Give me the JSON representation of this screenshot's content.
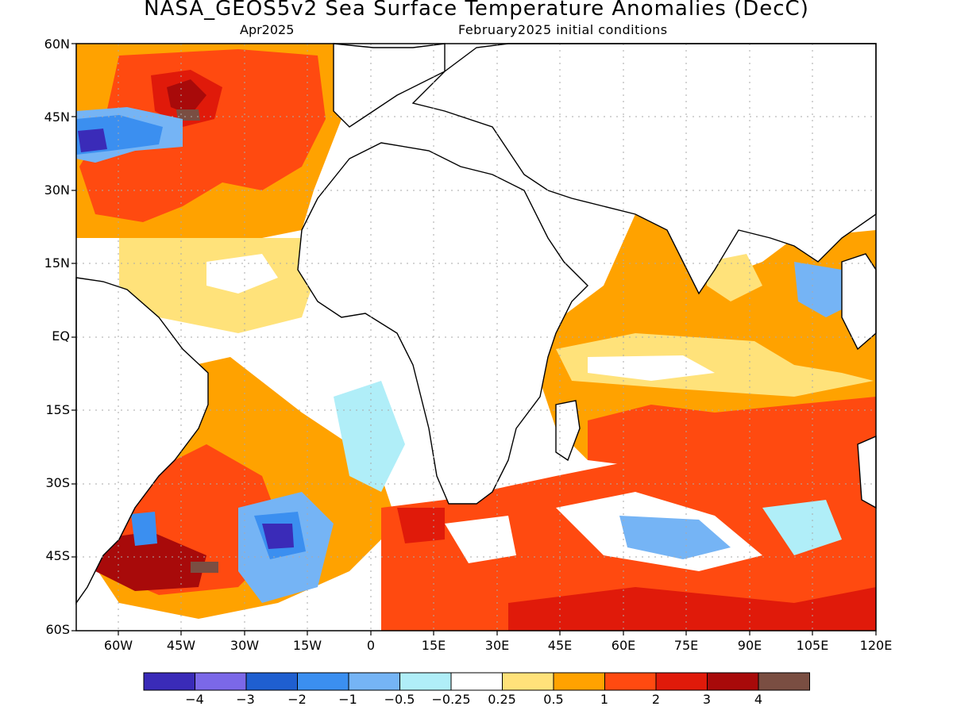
{
  "title": "NASA_GEOS5v2 Sea Surface Temperature Anomalies (DecC)",
  "subtitle_left": "Apr2025",
  "subtitle_right": "February2025 initial conditions",
  "lat_labels": [
    "60N",
    "45N",
    "30N",
    "15N",
    "EQ",
    "15S",
    "30S",
    "45S",
    "60S"
  ],
  "lon_labels": [
    "60W",
    "45W",
    "30W",
    "15W",
    "0",
    "15E",
    "30E",
    "45E",
    "60E",
    "75E",
    "90E",
    "105E",
    "120E"
  ],
  "colorbar": {
    "colors": [
      "#3a2bb8",
      "#7b68e8",
      "#1f5fd0",
      "#3b8ff0",
      "#75b4f5",
      "#b0eef8",
      "#ffffff",
      "#ffe27a",
      "#ffa200",
      "#ff4a10",
      "#e01a0a",
      "#a80a0a",
      "#7a4e42"
    ],
    "labels": [
      "−4",
      "−3",
      "−2",
      "−1",
      "−0.5",
      "−0.25",
      "0.25",
      "0.5",
      "1",
      "2",
      "3",
      "4"
    ]
  },
  "map_bounds": {
    "lon_min": -70,
    "lon_max": 120,
    "lat_min": -60,
    "lat_max": 60
  }
}
